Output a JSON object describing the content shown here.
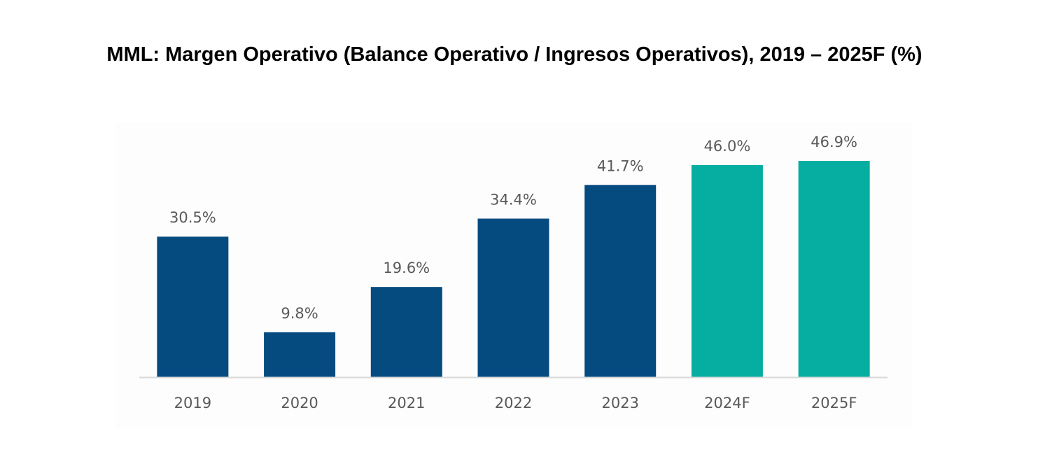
{
  "chart_data": {
    "type": "bar",
    "title": "MML: Margen Operativo (Balance Operativo / Ingresos Operativos), 2019 – 2025F (%)",
    "xlabel": "",
    "ylabel": "",
    "categories": [
      "2019",
      "2020",
      "2021",
      "2022",
      "2023",
      "2024F",
      "2025F"
    ],
    "values": [
      30.5,
      9.8,
      19.6,
      34.4,
      41.7,
      46.0,
      46.9
    ],
    "data_labels": [
      "30.5%",
      "9.8%",
      "19.6%",
      "34.4%",
      "41.7%",
      "46.0%",
      "46.9%"
    ],
    "ylim": [
      0,
      50
    ],
    "grid": false,
    "legend": "none",
    "colors": {
      "actual": "#054b80",
      "forecast": "#05aea1",
      "baseline": "#d9d9d9",
      "label_text": "#595959"
    },
    "forecast_categories": [
      "2024F",
      "2025F"
    ]
  }
}
